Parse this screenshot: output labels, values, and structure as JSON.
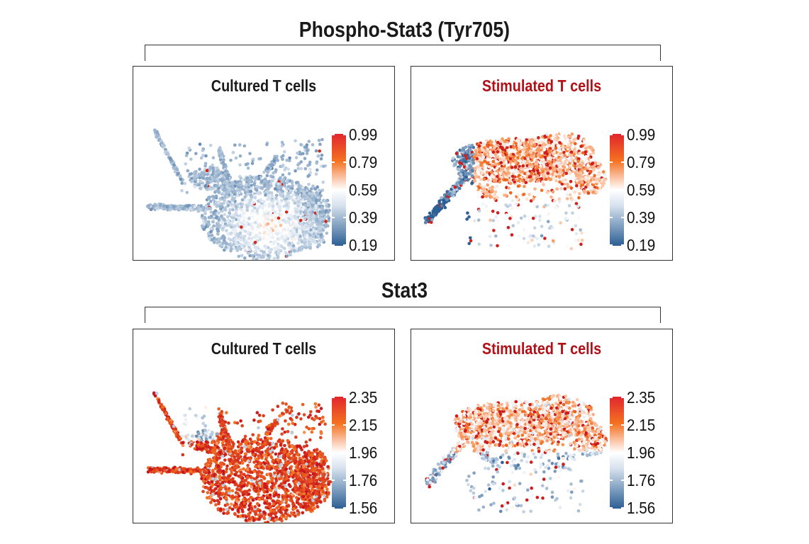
{
  "figure": {
    "sections": [
      {
        "title": "Phospho-Stat3 (Tyr705)"
      },
      {
        "title": "Stat3"
      }
    ]
  },
  "colors": {
    "cultured_title": "#1a1a1a",
    "stimulated_title": "#b01016",
    "scale": [
      "#2c5f94",
      "#d7e2ee",
      "#ffffff",
      "#f9b28a",
      "#f47221",
      "#e1262e"
    ]
  },
  "chart_data": [
    {
      "type": "scatter",
      "title": "Cultured T cells",
      "section": "Phospho-Stat3 (Tyr705)",
      "colorbar": {
        "min": 0.19,
        "max": 0.99,
        "ticks": [
          "0.99",
          "0.79",
          "0.59",
          "0.39",
          "0.19"
        ]
      }
    },
    {
      "type": "scatter",
      "title": "Stimulated T cells",
      "section": "Phospho-Stat3 (Tyr705)",
      "colorbar": {
        "min": 0.19,
        "max": 0.99,
        "ticks": [
          "0.99",
          "0.79",
          "0.59",
          "0.39",
          "0.19"
        ]
      }
    },
    {
      "type": "scatter",
      "title": "Cultured T cells",
      "section": "Stat3",
      "colorbar": {
        "min": 1.56,
        "max": 2.35,
        "ticks": [
          "2.35",
          "2.15",
          "1.96",
          "1.76",
          "1.56"
        ]
      }
    },
    {
      "type": "scatter",
      "title": "Stimulated T cells",
      "section": "Stat3",
      "colorbar": {
        "min": 1.56,
        "max": 2.35,
        "ticks": [
          "2.35",
          "2.15",
          "1.96",
          "1.76",
          "1.56"
        ]
      }
    }
  ]
}
